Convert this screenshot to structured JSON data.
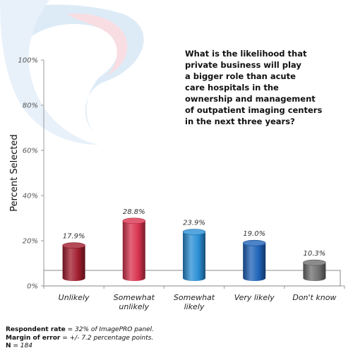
{
  "chart_data": {
    "type": "bar",
    "title": "What is the likelihood that\nprivate business will play\na bigger role than acute\ncare hospitals in the\nownership and management\nof outpatient imaging centers\nin the next three years?",
    "ylabel": "Percent Selected",
    "xlabel": "",
    "ylim": [
      0,
      100
    ],
    "yticks": [
      "0%",
      "20%",
      "40%",
      "60%",
      "80%",
      "100%"
    ],
    "ytick_values": [
      0,
      20,
      40,
      60,
      80,
      100
    ],
    "grid": false,
    "categories": [
      "Unlikely",
      "Somewhat\nunlikely",
      "Somewhat\nlikely",
      "Very likely",
      "Don't know"
    ],
    "values": [
      17.9,
      28.8,
      23.9,
      19.0,
      10.3
    ],
    "value_labels": [
      "17.9%",
      "28.8%",
      "23.9%",
      "19.0%",
      "10.3%"
    ],
    "colors": [
      "#a11d2e",
      "#d9334f",
      "#2a8fd6",
      "#1f63b8",
      "#6f6f6f"
    ]
  },
  "footnotes": [
    {
      "key": "Respondent rate",
      "value": " = 32% of ImagePRO panel."
    },
    {
      "key": "Margin of error",
      "value": " = +/- 7.2 percentage points."
    },
    {
      "key": "N",
      "value": " = 184"
    }
  ]
}
